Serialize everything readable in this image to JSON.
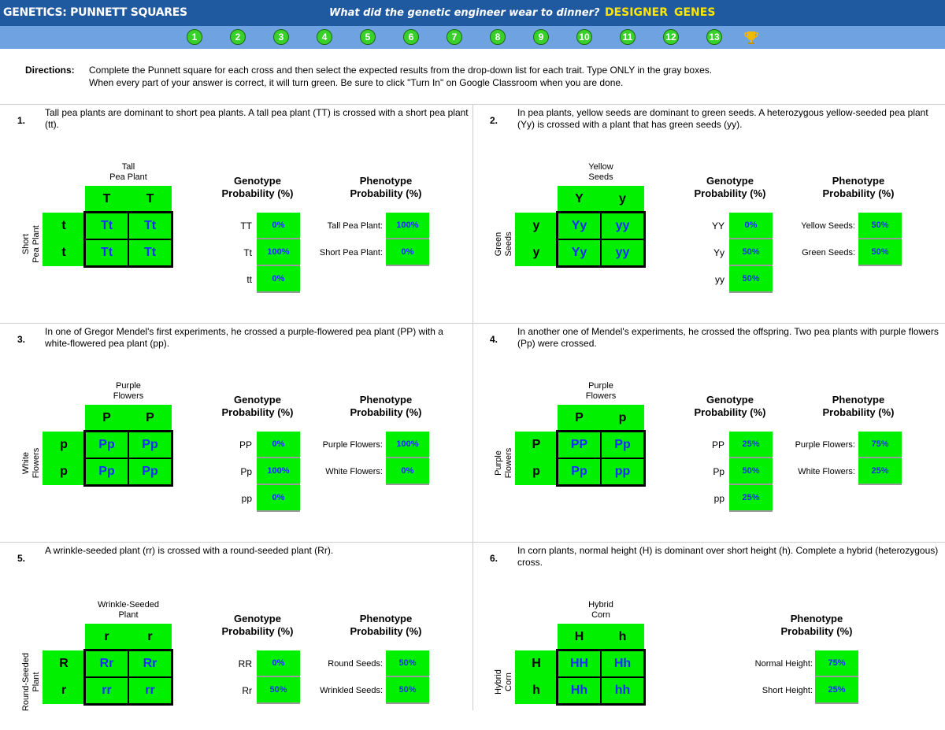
{
  "header": {
    "title": "GENETICS: PUNNETT SQUARES",
    "riddle": "What did the genetic engineer wear to dinner?",
    "answer": [
      "DESIGNER",
      "GENES"
    ]
  },
  "tabs": [
    "1",
    "2",
    "3",
    "4",
    "5",
    "6",
    "7",
    "8",
    "9",
    "10",
    "11",
    "12",
    "13"
  ],
  "directions": {
    "label": "Directions:",
    "lines": [
      "Complete the Punnett square for each cross and then select the expected results from the drop-down list for each trait. Type ONLY in the gray boxes.",
      "When every part of your answer is correct, it will turn green. Be sure to click \"Turn In\" on Google Classroom when you are done."
    ]
  },
  "labels": {
    "genotype_title": [
      "Genotype",
      "Probability (%)"
    ],
    "phenotype_title": [
      "Phenotype",
      "Probability (%)"
    ]
  },
  "problems": [
    {
      "number": "1.",
      "text": "Tall pea plants are dominant to short pea plants. A tall pea plant (TT) is crossed with a short pea plant (tt).",
      "square": {
        "top_label": [
          "Tall",
          "Pea Plant"
        ],
        "left_label": [
          "Short",
          "Pea Plant"
        ],
        "top_alleles": [
          "T",
          "T"
        ],
        "left_alleles": [
          "t",
          "t"
        ],
        "cells": [
          [
            "Tt",
            "Tt"
          ],
          [
            "Tt",
            "Tt"
          ]
        ]
      },
      "genotype": [
        {
          "label": "TT",
          "value": "0%"
        },
        {
          "label": "Tt",
          "value": "100%"
        },
        {
          "label": "tt",
          "value": "0%"
        }
      ],
      "phenotype": [
        {
          "label": "Tall Pea Plant:",
          "value": "100%"
        },
        {
          "label": "Short Pea Plant:",
          "value": "0%"
        }
      ]
    },
    {
      "number": "2.",
      "text": "In pea plants, yellow seeds are dominant to green seeds. A heterozygous yellow-seeded pea plant (Yy) is crossed with a plant that has green seeds (yy).",
      "square": {
        "top_label": [
          "Yellow",
          "Seeds"
        ],
        "left_label": [
          "Green",
          "Seeds"
        ],
        "top_alleles": [
          "Y",
          "y"
        ],
        "left_alleles": [
          "y",
          "y"
        ],
        "cells": [
          [
            "Yy",
            "yy"
          ],
          [
            "Yy",
            "yy"
          ]
        ]
      },
      "genotype": [
        {
          "label": "YY",
          "value": "0%"
        },
        {
          "label": "Yy",
          "value": "50%"
        },
        {
          "label": "yy",
          "value": "50%"
        }
      ],
      "phenotype": [
        {
          "label": "Yellow Seeds:",
          "value": "50%"
        },
        {
          "label": "Green Seeds:",
          "value": "50%"
        }
      ]
    },
    {
      "number": "3.",
      "text": "In one of Gregor Mendel's first experiments, he crossed a purple-flowered pea plant (PP) with a white-flowered pea plant (pp).",
      "square": {
        "top_label": [
          "Purple",
          "Flowers"
        ],
        "left_label": [
          "White",
          "Flowers"
        ],
        "top_alleles": [
          "P",
          "P"
        ],
        "left_alleles": [
          "p",
          "p"
        ],
        "cells": [
          [
            "Pp",
            "Pp"
          ],
          [
            "Pp",
            "Pp"
          ]
        ]
      },
      "genotype": [
        {
          "label": "PP",
          "value": "0%"
        },
        {
          "label": "Pp",
          "value": "100%"
        },
        {
          "label": "pp",
          "value": "0%"
        }
      ],
      "phenotype": [
        {
          "label": "Purple Flowers:",
          "value": "100%"
        },
        {
          "label": "White Flowers:",
          "value": "0%"
        }
      ]
    },
    {
      "number": "4.",
      "text": "In another one of Mendel's experiments, he crossed the offspring. Two pea plants with purple flowers (Pp) were crossed.",
      "square": {
        "top_label": [
          "Purple",
          "Flowers"
        ],
        "left_label": [
          "Purple",
          "Flowers"
        ],
        "top_alleles": [
          "P",
          "p"
        ],
        "left_alleles": [
          "P",
          "p"
        ],
        "cells": [
          [
            "PP",
            "Pp"
          ],
          [
            "Pp",
            "pp"
          ]
        ]
      },
      "genotype": [
        {
          "label": "PP",
          "value": "25%"
        },
        {
          "label": "Pp",
          "value": "50%"
        },
        {
          "label": "pp",
          "value": "25%"
        }
      ],
      "phenotype": [
        {
          "label": "Purple Flowers:",
          "value": "75%"
        },
        {
          "label": "White Flowers:",
          "value": "25%"
        }
      ]
    },
    {
      "number": "5.",
      "text": "A wrinkle-seeded plant (rr) is crossed with a round-seeded plant (Rr).",
      "square": {
        "top_label": [
          "Wrinkle-Seeded",
          "Plant"
        ],
        "left_label": [
          "Round-Seeded",
          "Plant"
        ],
        "top_alleles": [
          "r",
          "r"
        ],
        "left_alleles": [
          "R",
          "r"
        ],
        "cells": [
          [
            "Rr",
            "Rr"
          ],
          [
            "rr",
            "rr"
          ]
        ]
      },
      "genotype": [
        {
          "label": "RR",
          "value": "0%"
        },
        {
          "label": "Rr",
          "value": "50%"
        }
      ],
      "phenotype": [
        {
          "label": "Round Seeds:",
          "value": "50%"
        },
        {
          "label": "Wrinkled Seeds:",
          "value": "50%"
        }
      ]
    },
    {
      "number": "6.",
      "text": "In corn plants, normal height (H) is dominant over short height (h). Complete a hybrid (heterozygous) cross.",
      "square": {
        "top_label": [
          "Hybrid",
          "Corn"
        ],
        "left_label": [
          "Hybrid",
          "Corn"
        ],
        "top_alleles": [
          "H",
          "h"
        ],
        "left_alleles": [
          "H",
          "h"
        ],
        "cells": [
          [
            "HH",
            "Hh"
          ],
          [
            "Hh",
            "hh"
          ]
        ]
      },
      "phenotype": [
        {
          "label": "Normal Height:",
          "value": "75%"
        },
        {
          "label": "Short Height:",
          "value": "25%"
        }
      ]
    }
  ]
}
